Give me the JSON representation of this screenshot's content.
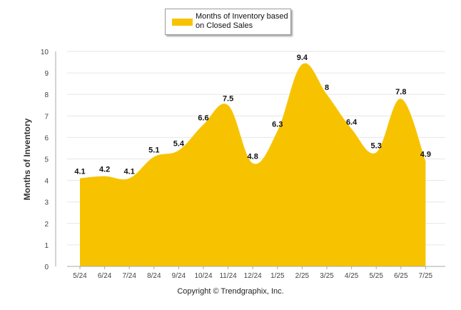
{
  "legend": {
    "label": "Months of Inventory based on Closed Sales"
  },
  "copyright": "Copyright © Trendgraphix, Inc.",
  "colors": {
    "area": "#f7c300",
    "grid": "#e6e6e6",
    "axis": "#aaaaaa",
    "text": "#333333"
  },
  "chart_data": {
    "type": "area",
    "title": "",
    "xlabel": "",
    "ylabel": "Months of Inventory",
    "ylim": [
      0,
      10
    ],
    "yticks": [
      "0",
      "1",
      "2",
      "3",
      "4",
      "5",
      "6",
      "7",
      "8",
      "9",
      "10"
    ],
    "categories": [
      "5/24",
      "6/24",
      "7/24",
      "8/24",
      "9/24",
      "10/24",
      "11/24",
      "12/24",
      "1/25",
      "2/25",
      "3/25",
      "4/25",
      "5/25",
      "6/25",
      "7/25"
    ],
    "series": [
      {
        "name": "Months of Inventory based on Closed Sales",
        "values": [
          4.1,
          4.2,
          4.1,
          5.1,
          5.4,
          6.6,
          7.5,
          4.8,
          6.3,
          9.4,
          8,
          6.4,
          5.3,
          7.8,
          4.9
        ],
        "labels": [
          "4.1",
          "4.2",
          "4.1",
          "5.1",
          "5.4",
          "6.6",
          "7.5",
          "4.8",
          "6.3",
          "9.4",
          "8",
          "6.4",
          "5.3",
          "7.8",
          "4.9"
        ]
      }
    ],
    "grid": true,
    "legend_position": "top-center"
  }
}
